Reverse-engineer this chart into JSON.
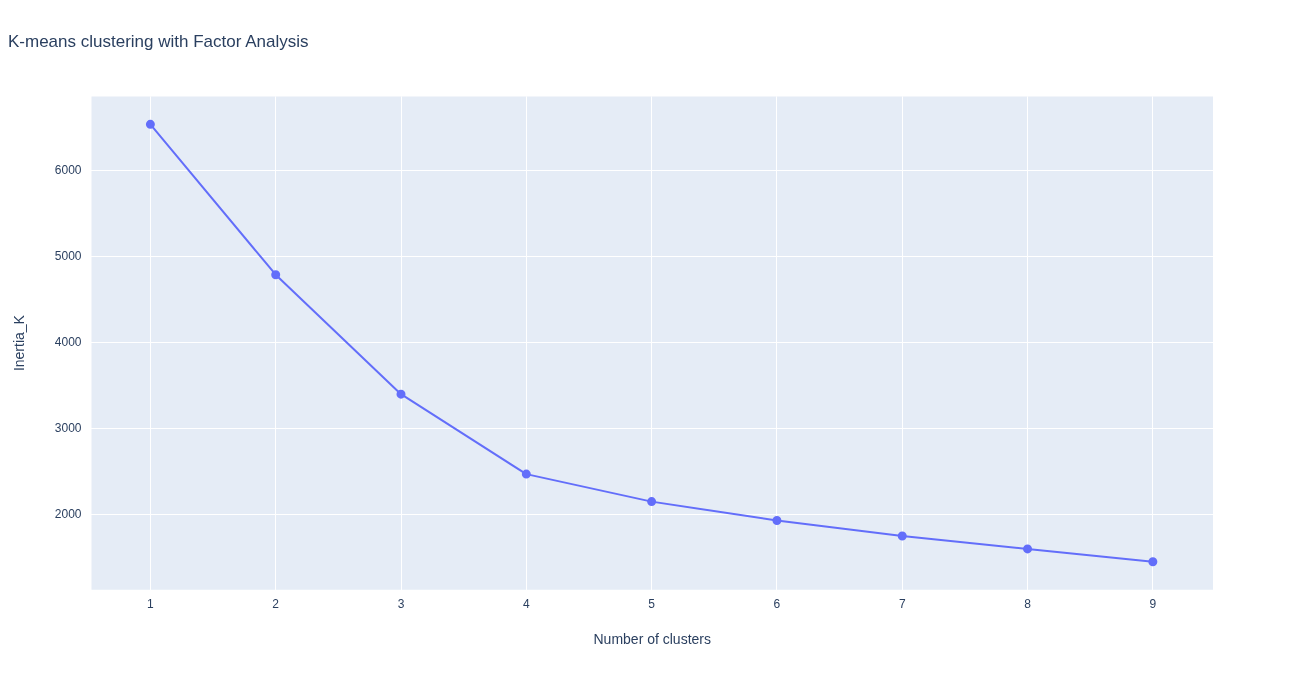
{
  "chart_data": {
    "type": "line",
    "title": "K-means clustering with Factor Analysis",
    "xlabel": "Number of clusters",
    "ylabel": "Inertia_K",
    "x": [
      1,
      2,
      3,
      4,
      5,
      6,
      7,
      8,
      9
    ],
    "series": [
      {
        "color": "#636efa",
        "values": [
          6540,
          4790,
          3400,
          2470,
          2150,
          1930,
          1750,
          1600,
          1450
        ]
      }
    ],
    "xlim": [
      0.53,
      9.48
    ],
    "xticks": [
      1,
      2,
      3,
      4,
      5,
      6,
      7,
      8,
      9
    ],
    "ylim": [
      1124,
      6865
    ],
    "yticks": [
      2000,
      3000,
      4000,
      5000,
      6000
    ],
    "grid": true,
    "marker": "circle",
    "line_style": "solid",
    "legend": false
  }
}
